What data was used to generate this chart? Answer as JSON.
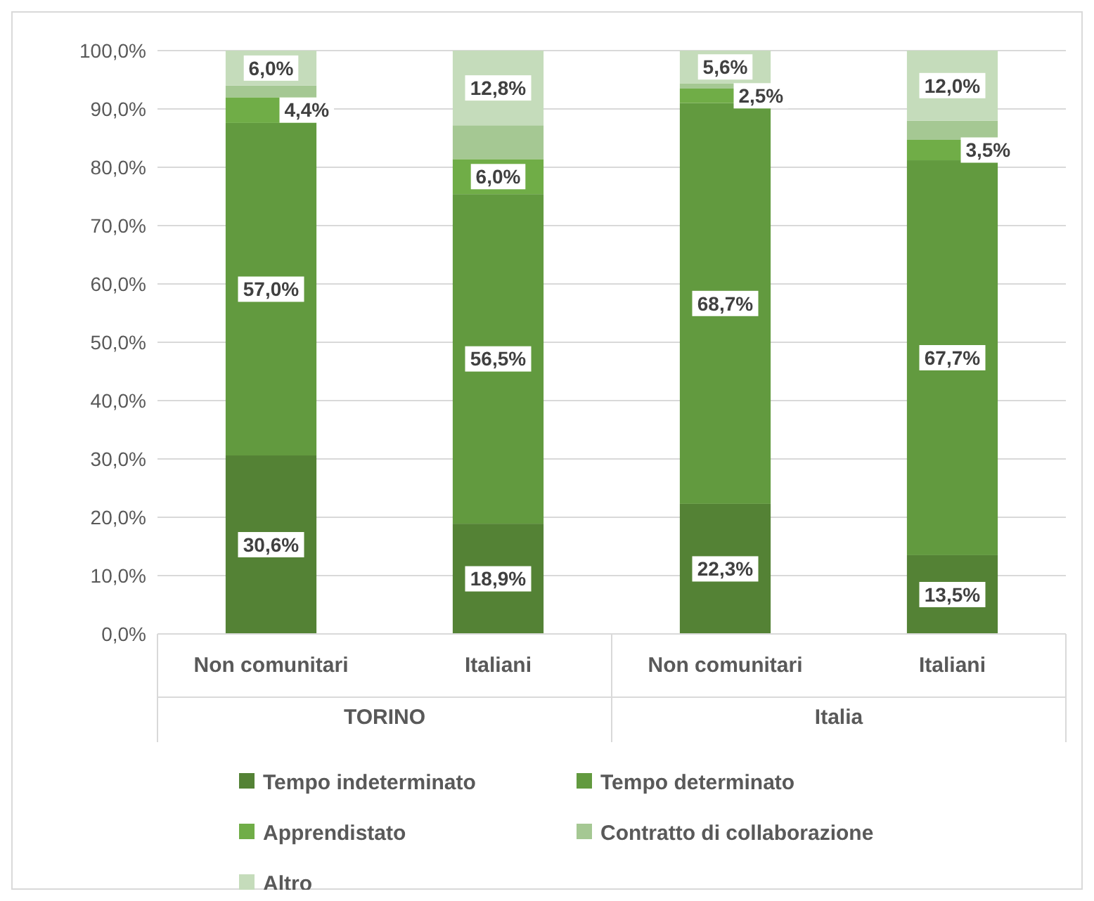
{
  "chart_data": {
    "type": "bar",
    "stacked": true,
    "categories": [
      "Non comunitari",
      "Italiani",
      "Non comunitari",
      "Italiani"
    ],
    "annotations": [
      "TORINO",
      "Italia"
    ],
    "series": [
      {
        "name": "Tempo indeterminato",
        "color": "#548235",
        "values": [
          30.6,
          18.9,
          22.3,
          13.5
        ],
        "value_labels": [
          "30,6%",
          "18,9%",
          "22,3%",
          "13,5%"
        ]
      },
      {
        "name": "Tempo determinato",
        "color": "#629a3f",
        "values": [
          57.0,
          56.5,
          68.7,
          67.7
        ],
        "value_labels": [
          "57,0%",
          "56,5%",
          "68,7%",
          "67,7%"
        ]
      },
      {
        "name": "Apprendistato",
        "color": "#70ad47",
        "values": [
          4.4,
          6.0,
          2.5,
          3.5
        ],
        "value_labels": [
          "4,4%",
          "6,0%",
          "2,5%",
          "3,5%"
        ]
      },
      {
        "name": "Contratto di collaborazione",
        "color": "#a5c893",
        "values": [
          2.0,
          5.8,
          0.9,
          3.3
        ]
      },
      {
        "name": "Altro",
        "color": "#c5dcbb",
        "values": [
          6.0,
          12.8,
          5.6,
          12.0
        ],
        "value_labels": [
          "6,0%",
          "12,8%",
          "5,6%",
          "12,0%"
        ]
      }
    ],
    "ylim": [
      0,
      100
    ],
    "yticks": [
      {
        "value": 0,
        "label": "0,0%"
      },
      {
        "value": 10,
        "label": "10,0%"
      },
      {
        "value": 20,
        "label": "20,0%"
      },
      {
        "value": 30,
        "label": "30,0%"
      },
      {
        "value": 40,
        "label": "40,0%"
      },
      {
        "value": 50,
        "label": "50,0%"
      },
      {
        "value": 60,
        "label": "60,0%"
      },
      {
        "value": 70,
        "label": "70,0%"
      },
      {
        "value": 80,
        "label": "80,0%"
      },
      {
        "value": 90,
        "label": "90,0%"
      },
      {
        "value": 100,
        "label": "100,0%"
      }
    ],
    "grid": "y",
    "legend": "bottom"
  }
}
